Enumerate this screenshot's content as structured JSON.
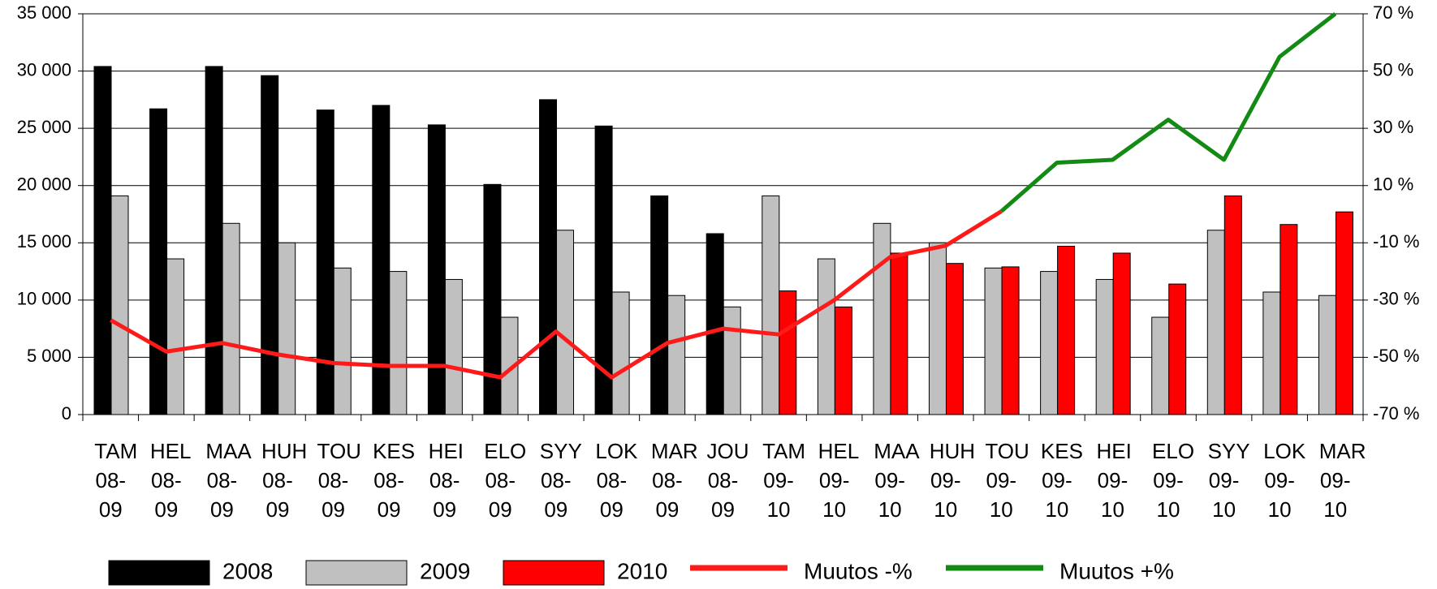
{
  "chart_data": {
    "type": "bar",
    "categories": [
      "TAM 08-09",
      "HEL 08-09",
      "MAA 08-09",
      "HUH 08-09",
      "TOU 08-09",
      "KES 08-09",
      "HEI 08-09",
      "ELO 08-09",
      "SYY 08-09",
      "LOK 08-09",
      "MAR 08-09",
      "JOU 08-09",
      "TAM 09-10",
      "HEL 09-10",
      "MAA 09-10",
      "HUH 09-10",
      "TOU 09-10",
      "KES 09-10",
      "HEI 09-10",
      "ELO 09-10",
      "SYY 09-10",
      "LOK 09-10",
      "MAR 09-10"
    ],
    "series": [
      {
        "name": "2008",
        "type": "bar",
        "color": "#000000",
        "values": [
          30400,
          26700,
          30400,
          29600,
          26600,
          27000,
          25300,
          20100,
          27500,
          25200,
          19100,
          15800,
          null,
          null,
          null,
          null,
          null,
          null,
          null,
          null,
          null,
          null,
          null
        ]
      },
      {
        "name": "2009",
        "type": "bar",
        "color": "#c0c0c0",
        "values": [
          19100,
          13600,
          16700,
          15000,
          12800,
          12500,
          11800,
          8500,
          16100,
          10700,
          10400,
          9400,
          19100,
          13600,
          16700,
          15000,
          12800,
          12500,
          11800,
          8500,
          16100,
          10700,
          10400
        ]
      },
      {
        "name": "2010",
        "type": "bar",
        "color": "#ff0000",
        "values": [
          null,
          null,
          null,
          null,
          null,
          null,
          null,
          null,
          null,
          null,
          null,
          null,
          10800,
          9400,
          14100,
          13200,
          12900,
          14700,
          14100,
          11400,
          19100,
          16600,
          17700
        ]
      },
      {
        "name": "Muutos -%",
        "type": "line",
        "axis": "y2",
        "color": "#ff1a1a",
        "values": [
          -37,
          -48,
          -45,
          -49,
          -52,
          -53,
          -53,
          -57,
          -41,
          -57,
          -45,
          -40,
          -42,
          -30,
          -15,
          -11,
          1,
          null,
          null,
          null,
          null,
          null,
          null
        ]
      },
      {
        "name": "Muutos +%",
        "type": "line",
        "axis": "y2",
        "color": "#138a13",
        "values": [
          null,
          null,
          null,
          null,
          null,
          null,
          null,
          null,
          null,
          null,
          null,
          null,
          null,
          null,
          null,
          null,
          1,
          18,
          19,
          33,
          19,
          55,
          70
        ]
      }
    ],
    "ylim": [
      0,
      35000
    ],
    "yticks": [
      0,
      {
        "value": 5000,
        "label": "5 000"
      },
      {
        "value": 10000,
        "label": "10 000"
      },
      {
        "value": 15000,
        "label": "15 000"
      },
      {
        "value": 20000,
        "label": "20 000"
      },
      {
        "value": 25000,
        "label": "25 000"
      },
      {
        "value": 30000,
        "label": "30 000"
      },
      {
        "value": 35000,
        "label": "35 000"
      }
    ],
    "y2lim": [
      -70,
      70
    ],
    "y2ticks": [
      {
        "value": -70,
        "label": "-70 %"
      },
      {
        "value": -50,
        "label": "-50 %"
      },
      {
        "value": -30,
        "label": "-30 %"
      },
      {
        "value": -10,
        "label": "-10 %"
      },
      {
        "value": 10,
        "label": "10 %"
      },
      {
        "value": 30,
        "label": "30 %"
      },
      {
        "value": 50,
        "label": "50 %"
      },
      {
        "value": 70,
        "label": "70 %"
      }
    ],
    "grid": true,
    "legend": "bottom"
  }
}
